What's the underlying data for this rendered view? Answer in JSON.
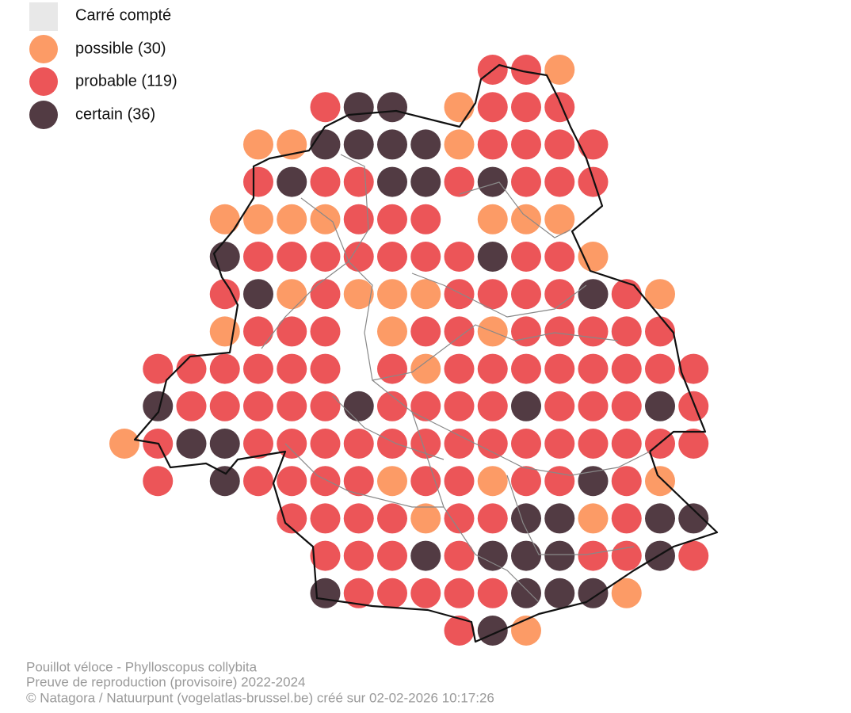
{
  "legend": [
    {
      "label": "Carré compté",
      "color": "#e8e8e8"
    },
    {
      "label": "possible (30)",
      "color": "#fc9b66"
    },
    {
      "label": "probable (119)",
      "color": "#ec5558"
    },
    {
      "label": "certain (36)",
      "color": "#523b43"
    }
  ],
  "grid": [
    [
      null,
      null,
      null,
      null,
      null,
      null,
      null,
      null,
      null,
      null,
      null,
      2,
      2,
      1,
      null,
      null,
      null,
      null
    ],
    [
      null,
      null,
      null,
      null,
      null,
      null,
      2,
      3,
      3,
      null,
      1,
      2,
      2,
      2,
      null,
      null,
      null,
      null
    ],
    [
      null,
      null,
      null,
      null,
      1,
      1,
      3,
      3,
      3,
      3,
      1,
      2,
      2,
      2,
      2,
      null,
      null,
      null
    ],
    [
      null,
      null,
      null,
      null,
      2,
      3,
      2,
      2,
      3,
      3,
      2,
      3,
      2,
      2,
      2,
      null,
      null,
      null
    ],
    [
      null,
      null,
      null,
      1,
      1,
      1,
      1,
      2,
      2,
      2,
      null,
      1,
      1,
      1,
      null,
      null,
      null,
      null
    ],
    [
      null,
      null,
      null,
      3,
      2,
      2,
      2,
      2,
      2,
      2,
      2,
      3,
      2,
      2,
      1,
      null,
      null,
      null
    ],
    [
      null,
      null,
      null,
      2,
      3,
      1,
      2,
      1,
      1,
      1,
      2,
      2,
      2,
      2,
      3,
      2,
      1,
      null
    ],
    [
      null,
      null,
      null,
      1,
      2,
      2,
      2,
      null,
      1,
      2,
      2,
      1,
      2,
      2,
      2,
      2,
      2,
      null
    ],
    [
      null,
      2,
      2,
      2,
      2,
      2,
      2,
      null,
      2,
      1,
      2,
      2,
      2,
      2,
      2,
      2,
      2,
      2
    ],
    [
      null,
      3,
      2,
      2,
      2,
      2,
      2,
      3,
      2,
      2,
      2,
      2,
      3,
      2,
      2,
      2,
      3,
      2
    ],
    [
      1,
      2,
      3,
      3,
      2,
      2,
      2,
      2,
      2,
      2,
      2,
      2,
      2,
      2,
      2,
      2,
      2,
      2
    ],
    [
      null,
      2,
      null,
      3,
      2,
      2,
      2,
      2,
      1,
      2,
      2,
      1,
      2,
      2,
      3,
      2,
      1,
      null
    ],
    [
      null,
      null,
      null,
      null,
      null,
      2,
      2,
      2,
      2,
      1,
      2,
      2,
      3,
      3,
      1,
      2,
      3,
      3
    ],
    [
      null,
      null,
      null,
      null,
      null,
      null,
      2,
      2,
      2,
      3,
      2,
      3,
      3,
      3,
      2,
      2,
      3,
      2
    ],
    [
      null,
      null,
      null,
      null,
      null,
      null,
      3,
      2,
      2,
      2,
      2,
      2,
      3,
      3,
      3,
      1,
      null,
      null
    ],
    [
      null,
      null,
      null,
      null,
      null,
      null,
      null,
      null,
      null,
      null,
      2,
      3,
      1,
      null,
      null,
      null,
      null,
      null
    ]
  ],
  "footer": [
    "Pouillot véloce - Phylloscopus collybita",
    "Preuve de reproduction (provisoire) 2022-2024",
    "© Natagora / Natuurpunt (vogelatlas-brussel.be) créé sur 02-02-2026 10:17:26"
  ]
}
